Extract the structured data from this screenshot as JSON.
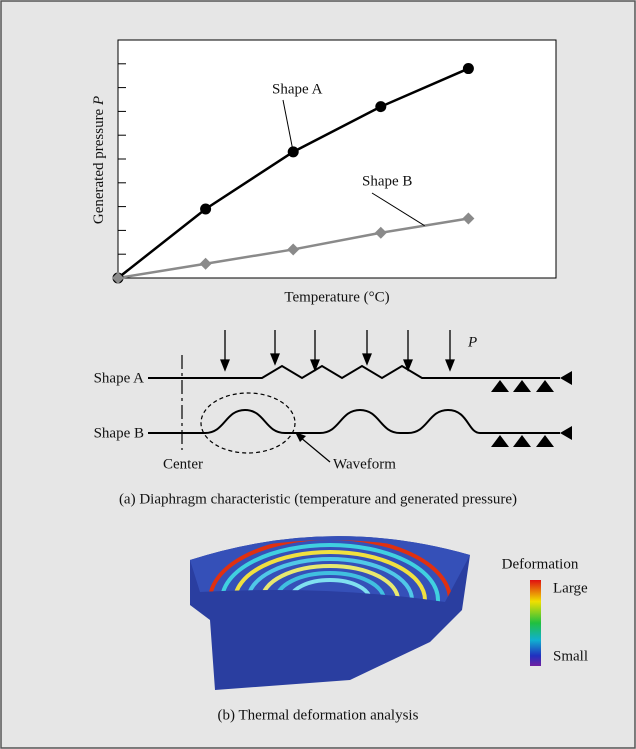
{
  "chart_data": {
    "type": "line",
    "y_label": "Generated pressure",
    "y_label_var": "P",
    "x_label": "Temperature (°C)",
    "x": [
      0,
      1,
      2,
      3,
      4
    ],
    "xlim": [
      0,
      5
    ],
    "ylim": [
      0,
      10
    ],
    "yticks": [
      1,
      2,
      3,
      4,
      5,
      6,
      7,
      8,
      9
    ],
    "series": [
      {
        "name": "Shape A",
        "color": "#000000",
        "marker": "circle",
        "values": [
          0,
          2.9,
          5.3,
          7.2,
          8.8
        ]
      },
      {
        "name": "Shape B",
        "color": "#8a8a8a",
        "marker": "diamond",
        "values": [
          0,
          0.6,
          1.2,
          1.9,
          2.5
        ]
      }
    ]
  },
  "diagram": {
    "shape_a": "Shape A",
    "shape_b": "Shape B",
    "center": "Center",
    "waveform": "Waveform",
    "pressure": "P",
    "caption": "(a) Diaphragm characteristic (temperature and generated pressure)"
  },
  "analysis": {
    "legend_title": "Deformation",
    "large": "Large",
    "small": "Small",
    "caption": "(b) Thermal deformation analysis"
  }
}
